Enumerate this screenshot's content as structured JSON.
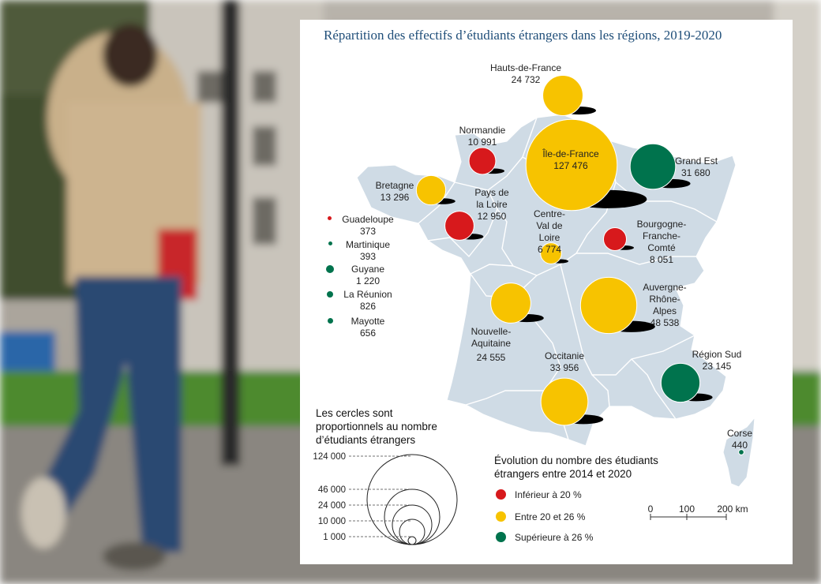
{
  "title": "Répartition des effectifs d’étudiants étrangers dans les régions, 2019-2020",
  "colors": {
    "red": "#d7191c",
    "yellow": "#f7c300",
    "green": "#00734d",
    "map_fill": "#cfdbe5",
    "map_border": "#ffffff",
    "title": "#1f4e79"
  },
  "regions": [
    {
      "name": "Hauts-de-France",
      "value": "24 732",
      "color": "yellow"
    },
    {
      "name": "Normandie",
      "value": "10 991",
      "color": "red"
    },
    {
      "name": "Île-de-France",
      "value": "127 476",
      "color": "yellow"
    },
    {
      "name": "Grand Est",
      "value": "31 680",
      "color": "green"
    },
    {
      "name": "Bretagne",
      "value": "13 296",
      "color": "yellow"
    },
    {
      "name": "Pays de la Loire",
      "value": "12 950",
      "color": "red"
    },
    {
      "name": "Centre-Val de Loire",
      "value": "6 774",
      "color": "yellow"
    },
    {
      "name": "Bourgogne-Franche-Comté",
      "value": "8 051",
      "color": "red"
    },
    {
      "name": "Auvergne-Rhône-Alpes",
      "value": "48 538",
      "color": "yellow"
    },
    {
      "name": "Nouvelle-Aquitaine",
      "value": "24 555",
      "color": "yellow"
    },
    {
      "name": "Occitanie",
      "value": "33 956",
      "color": "yellow"
    },
    {
      "name": "Région Sud",
      "value": "23 145",
      "color": "green"
    },
    {
      "name": "Corse",
      "value": "440",
      "color": "green"
    }
  ],
  "overseas": [
    {
      "name": "Guadeloupe",
      "value": "373",
      "color": "red"
    },
    {
      "name": "Martinique",
      "value": "393",
      "color": "green"
    },
    {
      "name": "Guyane",
      "value": "1 220",
      "color": "green"
    },
    {
      "name": "La Réunion",
      "value": "826",
      "color": "green"
    },
    {
      "name": "Mayotte",
      "value": "656",
      "color": "green"
    }
  ],
  "size_legend": {
    "title": "Les cercles sont proportionnels au nombre d’étudiants étrangers",
    "values": [
      "124 000",
      "46 000",
      "24 000",
      "10 000",
      "1 000"
    ]
  },
  "color_legend": {
    "title": "Évolution du nombre des étudiants étrangers entre 2014 et 2020",
    "items": [
      {
        "label": "Inférieur à 20 %",
        "color": "red"
      },
      {
        "label": "Entre 20 et 26 %",
        "color": "yellow"
      },
      {
        "label": "Supérieure à 26 %",
        "color": "green"
      }
    ]
  },
  "scale_bar": {
    "ticks": [
      "0",
      "100",
      "200 km"
    ]
  }
}
